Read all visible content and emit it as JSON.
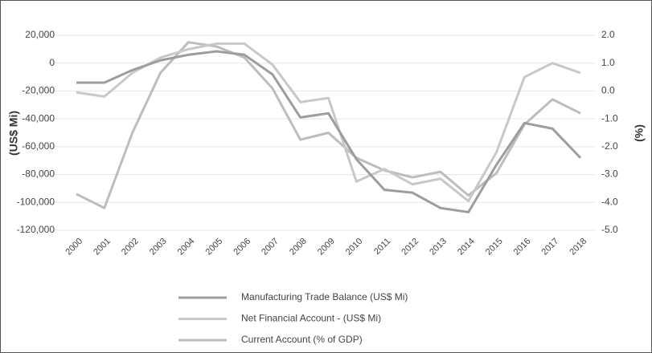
{
  "chart_data": {
    "type": "line",
    "y_label": "(US$ Mi)",
    "y2_label": "(%)",
    "categories": [
      "2000",
      "2001",
      "2002",
      "2003",
      "2004",
      "2005",
      "2006",
      "2007",
      "2008",
      "2009",
      "2010",
      "2011",
      "2012",
      "2013",
      "2014",
      "2015",
      "2016",
      "2017",
      "2018"
    ],
    "series": [
      {
        "name": "Manufacturing Trade Balance (US$ Mi)",
        "color": "#9d9d9d",
        "axis": "y",
        "values": [
          -14000,
          -14000,
          -5000,
          2000,
          6000,
          8500,
          6000,
          -8000,
          -39000,
          -36000,
          -69000,
          -91000,
          -93000,
          -104000,
          -107000,
          -73000,
          -43000,
          -47000,
          -68000
        ]
      },
      {
        "name": "Net Financial Account - (US$ Mi)",
        "color": "#c8c8c8",
        "axis": "y",
        "values": [
          -21000,
          -24000,
          -7000,
          4000,
          10000,
          14000,
          14000,
          -1000,
          -28000,
          -25000,
          -85000,
          -76000,
          -87000,
          -83000,
          -99000,
          -64000,
          -10000,
          0,
          -7000
        ]
      },
      {
        "name": "Current Account (% of GDP)",
        "color": "#bdbdbd",
        "axis": "y2",
        "values": [
          -3.7,
          -4.2,
          -1.5,
          0.65,
          1.75,
          1.6,
          1.2,
          0.1,
          -1.75,
          -1.5,
          -2.4,
          -2.85,
          -3.1,
          -2.9,
          -3.75,
          -2.95,
          -1.2,
          -0.3,
          -0.8
        ]
      }
    ],
    "ylim": [
      -120000,
      20000
    ],
    "yticks": [
      {
        "value": 20000,
        "label": "20,000"
      },
      0,
      {
        "value": -20000,
        "label": "-20,000"
      },
      {
        "value": -40000,
        "label": "-40,000"
      },
      {
        "value": -60000,
        "label": "-60,000"
      },
      {
        "value": -80000,
        "label": "-80,000"
      },
      {
        "value": -100000,
        "label": "-100,000"
      },
      {
        "value": -120000,
        "label": "-120,000"
      }
    ],
    "y2lim": [
      -5,
      2
    ],
    "y2ticks": [
      {
        "value": 2,
        "label": "2.0"
      },
      {
        "value": 1,
        "label": "1.0"
      },
      {
        "value": 0,
        "label": "0.0"
      },
      {
        "value": -1,
        "label": "-1.0"
      },
      {
        "value": -2,
        "label": "-2.0"
      },
      {
        "value": -3,
        "label": "-3.0"
      },
      {
        "value": -4,
        "label": "-4.0"
      },
      {
        "value": -5,
        "label": "-5.0"
      }
    ],
    "grid": true
  }
}
